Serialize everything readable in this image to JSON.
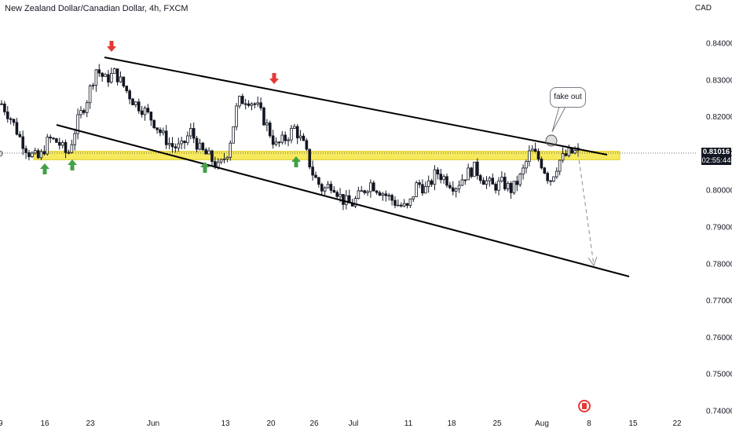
{
  "header": {
    "title": "New Zealand Dollar/Canadian Dollar, 4h, FXCM",
    "currency": "CAD"
  },
  "price_tag": {
    "price": "0.81016",
    "countdown": "02:55:44"
  },
  "annotation": {
    "callout": "fake out"
  },
  "colors": {
    "support_band": "#f5e642",
    "arrow_up": "#43a047",
    "arrow_down": "#e53935",
    "candle": "#131722"
  },
  "chart_data": {
    "type": "candlestick",
    "symbol": "New Zealand Dollar/Canadian Dollar, 4h, FXCM",
    "y_axis": {
      "ylim": [
        0.74,
        0.845
      ],
      "ticks": [
        "0.84000",
        "0.83000",
        "0.82000",
        "0.81000",
        "0.80000",
        "0.79000",
        "0.78000",
        "0.77000",
        "0.76000",
        "0.75000",
        "0.74000"
      ]
    },
    "x_axis": {
      "ticks": [
        "16",
        "23",
        "Jun",
        "13",
        "20",
        "26",
        "Jul",
        "11",
        "18",
        "25",
        "Aug",
        "8",
        "15",
        "22"
      ]
    },
    "close_path": [
      0.8235,
      0.8195,
      0.814,
      0.8098,
      0.8085,
      0.814,
      0.813,
      0.8095,
      0.8185,
      0.8245,
      0.833,
      0.83,
      0.832,
      0.828,
      0.824,
      0.822,
      0.819,
      0.815,
      0.812,
      0.8115,
      0.816,
      0.811,
      0.809,
      0.806,
      0.811,
      0.824,
      0.825,
      0.823,
      0.818,
      0.812,
      0.814,
      0.817,
      0.812,
      0.804,
      0.8,
      0.802,
      0.7975,
      0.796,
      0.799,
      0.802,
      0.8,
      0.798,
      0.796,
      0.795,
      0.802,
      0.8,
      0.805,
      0.803,
      0.801,
      0.804,
      0.806,
      0.803,
      0.801,
      0.802,
      0.8,
      0.804,
      0.811,
      0.808,
      0.8025,
      0.808,
      0.81,
      0.8105
    ],
    "horizontal_line": 0.8101,
    "support_zone": [
      0.8083,
      0.8106
    ],
    "trendlines": [
      {
        "name": "upper",
        "x": [
          "23",
          "8"
        ],
        "y": [
          0.8325,
          0.8103
        ]
      },
      {
        "name": "lower",
        "x": [
          "16",
          "15"
        ],
        "y": [
          0.816,
          0.777
        ]
      }
    ],
    "markers_up": [
      "16",
      "16",
      "13",
      "26"
    ],
    "markers_down": [
      "23",
      "20"
    ]
  }
}
